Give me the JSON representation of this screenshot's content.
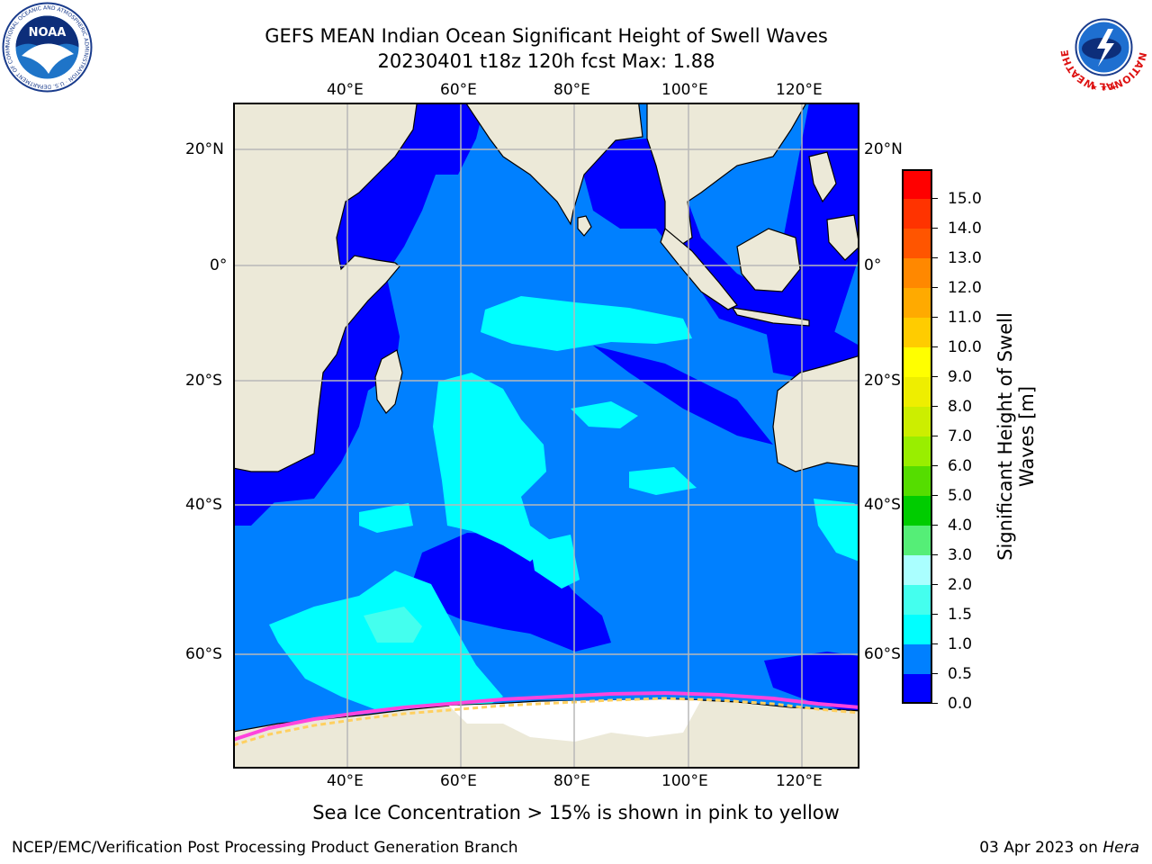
{
  "title": {
    "line1": "GEFS MEAN Indian Ocean Significant Height of Swell Waves",
    "line2": "20230401 t18z 120h fcst   Max: 1.88"
  },
  "map": {
    "lon_labels": [
      "40°E",
      "60°E",
      "80°E",
      "100°E",
      "120°E"
    ],
    "lat_labels": [
      "20°N",
      "0°",
      "20°S",
      "40°S",
      "60°S"
    ],
    "extent": {
      "lon": [
        20,
        130
      ],
      "lat": [
        -70,
        28
      ]
    },
    "gridlines": true,
    "colors": {
      "land": "#ece9d8",
      "sea_ice": "#ff44dd",
      "ice_edge": "#ffd060",
      "grid": "#b8b8b8"
    }
  },
  "colorbar": {
    "label_line1": "Significant Height of Swell",
    "label_line2": "Waves [m]",
    "ticks": [
      "0.0",
      "0.5",
      "1.0",
      "1.5",
      "2.0",
      "3.0",
      "4.0",
      "5.0",
      "6.0",
      "7.0",
      "8.0",
      "9.0",
      "10.0",
      "11.0",
      "12.0",
      "13.0",
      "14.0",
      "15.0"
    ],
    "bins": [
      {
        "from": 0.0,
        "to": 0.5,
        "color": "#0000ff"
      },
      {
        "from": 0.5,
        "to": 1.0,
        "color": "#0080ff"
      },
      {
        "from": 1.0,
        "to": 1.5,
        "color": "#00ffff"
      },
      {
        "from": 1.5,
        "to": 2.0,
        "color": "#44ffee"
      },
      {
        "from": 2.0,
        "to": 3.0,
        "color": "#aaffff"
      },
      {
        "from": 3.0,
        "to": 4.0,
        "color": "#55ee77"
      },
      {
        "from": 4.0,
        "to": 5.0,
        "color": "#00cc00"
      },
      {
        "from": 5.0,
        "to": 6.0,
        "color": "#55dd00"
      },
      {
        "from": 6.0,
        "to": 7.0,
        "color": "#99ee00"
      },
      {
        "from": 7.0,
        "to": 8.0,
        "color": "#ccee00"
      },
      {
        "from": 8.0,
        "to": 9.0,
        "color": "#eeee00"
      },
      {
        "from": 9.0,
        "to": 10.0,
        "color": "#ffff00"
      },
      {
        "from": 10.0,
        "to": 11.0,
        "color": "#ffcc00"
      },
      {
        "from": 11.0,
        "to": 12.0,
        "color": "#ffaa00"
      },
      {
        "from": 12.0,
        "to": 13.0,
        "color": "#ff8800"
      },
      {
        "from": 13.0,
        "to": 14.0,
        "color": "#ff5500"
      },
      {
        "from": 14.0,
        "to": 15.0,
        "color": "#ff3300"
      },
      {
        "from": 15.0,
        "to": 16.0,
        "color": "#ff0000"
      }
    ]
  },
  "caption": "Sea Ice Concentration > 15% is shown in pink to yellow",
  "footer": {
    "left": "NCEP/EMC/Verification Post Processing Product Generation Branch",
    "right_prefix": "03 Apr 2023 on ",
    "right_host": "Hera"
  },
  "logos": {
    "noaa": {
      "text": "NOAA",
      "ring": "NATIONAL OCEANIC AND ATMOSPHERIC ADMINISTRATION · U.S. DEPARTMENT OF COMMERCE"
    },
    "nws": {
      "ring": "NATIONAL WEATHER SERVICE"
    }
  }
}
